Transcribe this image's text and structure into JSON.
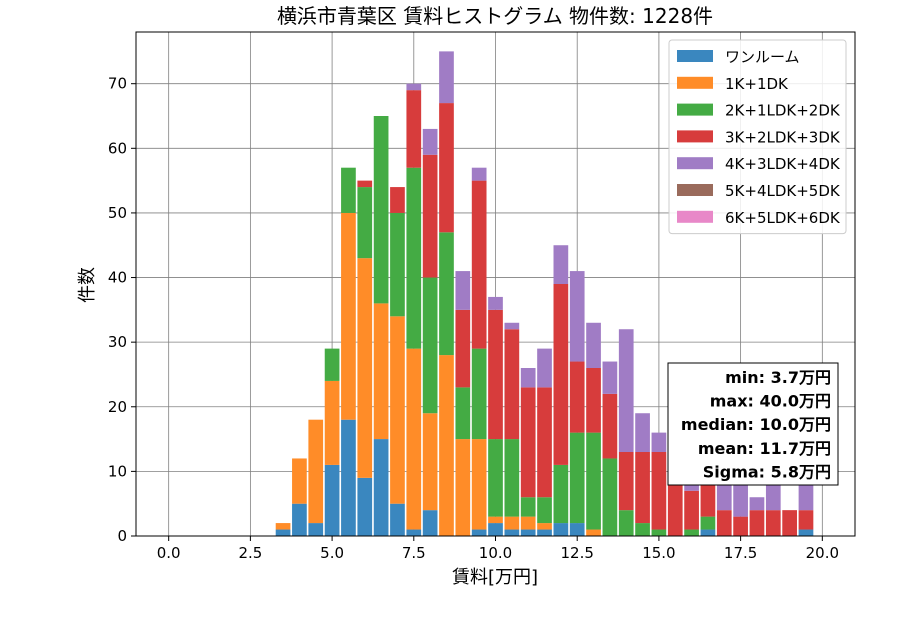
{
  "chart_data": {
    "type": "bar",
    "stacked": true,
    "title": "横浜市青葉区 賃料ヒストグラム 物件数: 1228件",
    "xlabel": "賃料[万円]",
    "ylabel": "件数",
    "xlim": [
      -1.0,
      21.0
    ],
    "ylim": [
      0,
      78
    ],
    "grid": true,
    "legend_placement": "top-right",
    "xticks": [
      0.0,
      2.5,
      5.0,
      7.5,
      10.0,
      12.5,
      15.0,
      17.5,
      20.0
    ],
    "xtick_labels": [
      "0.0",
      "2.5",
      "5.0",
      "7.5",
      "10.0",
      "12.5",
      "15.0",
      "17.5",
      "20.0"
    ],
    "yticks": [
      0,
      10,
      20,
      30,
      40,
      50,
      60,
      70
    ],
    "ytick_labels": [
      "0",
      "10",
      "20",
      "30",
      "40",
      "50",
      "60",
      "70"
    ],
    "bin_width": 0.5,
    "bin_centers": [
      3.5,
      4.0,
      4.5,
      5.0,
      5.5,
      6.0,
      6.5,
      7.0,
      7.5,
      8.0,
      8.5,
      9.0,
      9.5,
      10.0,
      10.5,
      11.0,
      11.5,
      12.0,
      12.5,
      13.0,
      13.5,
      14.0,
      14.5,
      15.0,
      15.5,
      16.0,
      16.5,
      17.0,
      17.5,
      18.0,
      18.5,
      19.0,
      19.5
    ],
    "series": [
      {
        "name": "ワンルーム",
        "color": "#3a87bf",
        "values": [
          1,
          5,
          2,
          11,
          18,
          9,
          15,
          5,
          1,
          4,
          0,
          0,
          1,
          2,
          1,
          1,
          1,
          2,
          2,
          0,
          0,
          0,
          0,
          0,
          0,
          0,
          1,
          0,
          0,
          0,
          0,
          0,
          1
        ]
      },
      {
        "name": "1K+1DK",
        "color": "#ff8c28",
        "values": [
          1,
          7,
          16,
          13,
          32,
          34,
          21,
          29,
          28,
          15,
          28,
          15,
          14,
          1,
          2,
          2,
          1,
          0,
          0,
          1,
          0,
          0,
          0,
          0,
          0,
          0,
          0,
          0,
          0,
          0,
          0,
          0,
          0
        ]
      },
      {
        "name": "2K+1LDK+2DK",
        "color": "#44ab44",
        "values": [
          0,
          0,
          0,
          5,
          7,
          11,
          29,
          16,
          28,
          21,
          19,
          8,
          14,
          12,
          12,
          3,
          4,
          9,
          14,
          15,
          12,
          4,
          2,
          1,
          0,
          1,
          2,
          0,
          0,
          0,
          0,
          0,
          0
        ]
      },
      {
        "name": "3K+2LDK+3DK",
        "color": "#d73c3c",
        "values": [
          0,
          0,
          0,
          0,
          0,
          1,
          0,
          4,
          12,
          19,
          20,
          12,
          26,
          20,
          17,
          17,
          17,
          28,
          11,
          10,
          10,
          9,
          11,
          12,
          10,
          6,
          8,
          4,
          3,
          4,
          4,
          4,
          3
        ]
      },
      {
        "name": "4K+3LDK+4DK",
        "color": "#a07cc5",
        "values": [
          0,
          0,
          0,
          0,
          0,
          0,
          0,
          0,
          1,
          4,
          8,
          6,
          2,
          2,
          1,
          3,
          6,
          6,
          14,
          7,
          5,
          19,
          6,
          3,
          4,
          2,
          2,
          7,
          7,
          2,
          9,
          0,
          4
        ]
      },
      {
        "name": "5K+4LDK+5DK",
        "color": "#9a6b5c",
        "values": [
          0,
          0,
          0,
          0,
          0,
          0,
          0,
          0,
          0,
          0,
          0,
          0,
          0,
          0,
          0,
          0,
          0,
          0,
          0,
          0,
          0,
          0,
          0,
          0,
          0,
          0,
          0,
          0,
          0,
          0,
          0,
          0,
          0
        ]
      },
      {
        "name": "6K+5LDK+6DK",
        "color": "#e888c8",
        "values": [
          0,
          0,
          0,
          0,
          0,
          0,
          0,
          0,
          0,
          0,
          0,
          0,
          0,
          0,
          0,
          0,
          0,
          0,
          0,
          0,
          0,
          0,
          0,
          0,
          0,
          0,
          0,
          0,
          0,
          0,
          0,
          0,
          0
        ]
      }
    ],
    "stats_box": {
      "placement": "right",
      "lines": [
        "min: 3.7万円",
        "max: 40.0万円",
        "median: 10.0万円",
        "mean: 11.7万円",
        "Sigma: 5.8万円"
      ]
    }
  }
}
